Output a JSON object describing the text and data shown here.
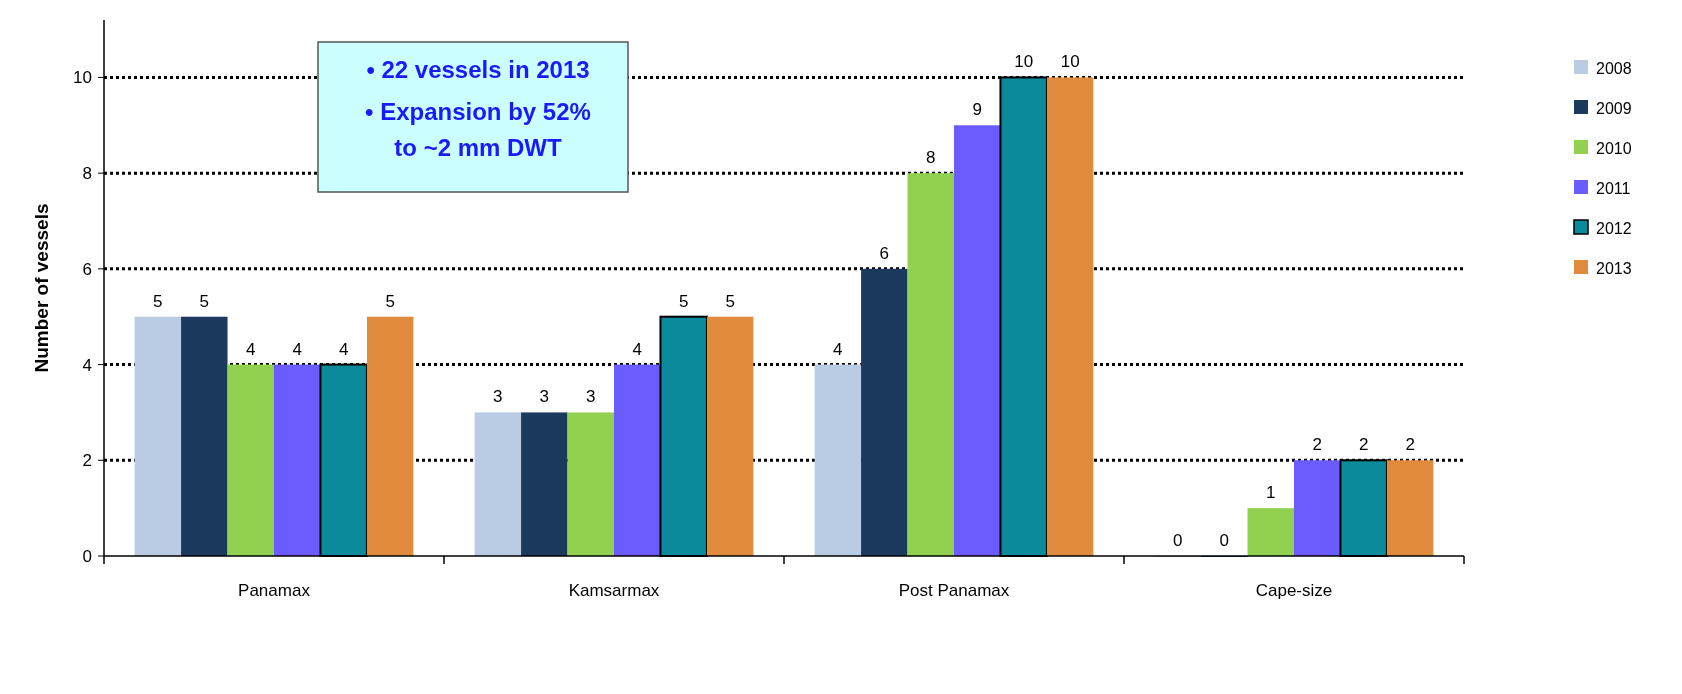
{
  "chart_data": {
    "type": "bar",
    "ylabel": "Number of vessels",
    "categories": [
      "Panamax",
      "Kamsarmax",
      "Post Panamax",
      "Cape-size"
    ],
    "series": [
      {
        "name": "2008",
        "color": "#b9cce4",
        "values": [
          5,
          3,
          4,
          0
        ]
      },
      {
        "name": "2009",
        "color": "#1b3a5e",
        "values": [
          5,
          3,
          6,
          0
        ]
      },
      {
        "name": "2010",
        "color": "#92d050",
        "values": [
          4,
          3,
          8,
          1
        ]
      },
      {
        "name": "2011",
        "color": "#6b5cff",
        "values": [
          4,
          4,
          9,
          2
        ]
      },
      {
        "name": "2012",
        "color": "#0a8a9a",
        "values": [
          4,
          5,
          10,
          2
        ]
      },
      {
        "name": "2013",
        "color": "#e08a3e",
        "values": [
          5,
          5,
          10,
          2
        ]
      }
    ],
    "ylim": [
      0,
      11.2
    ],
    "yticks": [
      0,
      2,
      4,
      6,
      8,
      10
    ],
    "grid": "y",
    "data_labels": true,
    "legend": "right",
    "annotations": [
      "• 22 vessels in 2013",
      "• Expansion by 52% to ~2 mm DWT"
    ]
  }
}
